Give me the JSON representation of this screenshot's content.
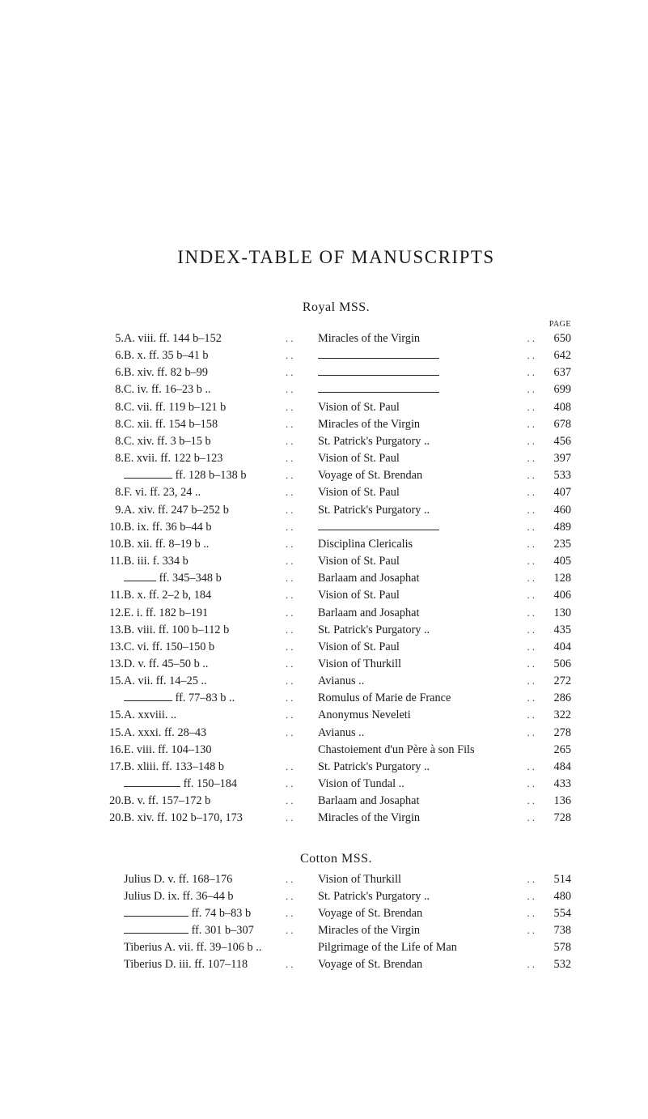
{
  "title": "INDEX-TABLE OF MANUSCRIPTS",
  "page_label": "PAGE",
  "sections": [
    {
      "heading": "Royal MSS.",
      "rows": [
        {
          "no": "5.",
          "ms": "A. viii. ff. 144 b–152",
          "subj": "Miracles of the Virgin",
          "pg": "650"
        },
        {
          "no": "6.",
          "ms": "B. x. ff. 35 b–41 b",
          "subj_rule": 150,
          "pg": "642"
        },
        {
          "no": "6.",
          "ms": "B. xiv. ff. 82 b–99",
          "subj_rule": 150,
          "pg": "637"
        },
        {
          "no": "8.",
          "ms": "C. iv. ff. 16–23 b ..",
          "subj_rule": 150,
          "pg": "699"
        },
        {
          "no": "8.",
          "ms": "C. vii. ff. 119 b–121 b",
          "subj": "Vision of St. Paul",
          "pg": "408"
        },
        {
          "no": "8.",
          "ms": "C. xii. ff. 154 b–158",
          "subj": "Miracles of the Virgin",
          "pg": "678"
        },
        {
          "no": "8.",
          "ms": "C. xiv. ff. 3 b–15 b",
          "subj": "St. Patrick's Purgatory ..",
          "pg": "456"
        },
        {
          "no": "8.",
          "ms": "E. xvii. ff. 122 b–123",
          "subj": "Vision of St. Paul",
          "pg": "397"
        },
        {
          "no": "",
          "ms_rule": 60,
          "ms_after": " ff. 128 b–138 b",
          "subj": "Voyage of St. Brendan",
          "pg": "533"
        },
        {
          "no": "8.",
          "ms": "F. vi. ff. 23, 24   ..",
          "subj": "Vision of St. Paul",
          "pg": "407"
        },
        {
          "no": "9.",
          "ms": "A. xiv. ff. 247 b–252 b",
          "subj": "St. Patrick's Purgatory ..",
          "pg": "460"
        },
        {
          "no": "10.",
          "ms": "B. ix. ff. 36 b–44 b",
          "subj_rule": 150,
          "pg": "489"
        },
        {
          "no": "10.",
          "ms": "B. xii. ff. 8–19 b ..",
          "subj": "Disciplina Clericalis",
          "pg": "235"
        },
        {
          "no": "11.",
          "ms": "B. iii. f. 334 b",
          "subj": "Vision of St. Paul",
          "pg": "405"
        },
        {
          "no": "",
          "ms_rule": 40,
          "ms_after": " ff. 345–348 b",
          "subj": "Barlaam and Josaphat",
          "pg": "128"
        },
        {
          "no": "11.",
          "ms": "B. x. ff. 2–2 b, 184",
          "subj": "Vision of St. Paul",
          "pg": "406"
        },
        {
          "no": "12.",
          "ms": "E. i. ff. 182 b–191",
          "subj": "Barlaam and Josaphat",
          "pg": "130"
        },
        {
          "no": "13.",
          "ms": "B. viii. ff. 100 b–112 b",
          "subj": "St. Patrick's Purgatory ..",
          "pg": "435"
        },
        {
          "no": "13.",
          "ms": "C. vi. ff. 150–150 b",
          "subj": "Vision of St. Paul",
          "pg": "404"
        },
        {
          "no": "13.",
          "ms": "D. v. ff. 45–50 b ..",
          "subj": "Vision of Thurkill",
          "pg": "506"
        },
        {
          "no": "15.",
          "ms": "A. vii. ff. 14–25 ..",
          "subj": "Avianus ..",
          "pg": "272"
        },
        {
          "no": "",
          "ms_rule": 60,
          "ms_after": " ff. 77–83 b ..",
          "subj": "Romulus of Marie de France",
          "pg": "286"
        },
        {
          "no": "15.",
          "ms": "A. xxviii. ..",
          "subj": "Anonymus Neveleti",
          "pg": "322"
        },
        {
          "no": "15.",
          "ms": "A. xxxi. ff. 28–43",
          "subj": "Avianus ..",
          "pg": "278"
        },
        {
          "no": "16.",
          "ms": "E. viii. ff. 104–130",
          "subj": "Chastoiement d'un Père à son Fils",
          "pg": "265",
          "tight": true
        },
        {
          "no": "17.",
          "ms": "B. xliii. ff. 133–148 b",
          "subj": "St. Patrick's Purgatory ..",
          "pg": "484"
        },
        {
          "no": "",
          "ms_rule": 70,
          "ms_after": " ff. 150–184",
          "subj": "Vision of Tundal ..",
          "pg": "433"
        },
        {
          "no": "20.",
          "ms": "B. v. ff. 157–172 b",
          "subj": "Barlaam and Josaphat",
          "pg": "136"
        },
        {
          "no": "20.",
          "ms": "B. xiv. ff. 102 b–170, 173",
          "subj": "Miracles of the Virgin",
          "pg": "728"
        }
      ]
    },
    {
      "heading": "Cotton MSS.",
      "rows": [
        {
          "no": "",
          "ms": "Julius D. v. ff. 168–176",
          "subj": "Vision of Thurkill",
          "pg": "514"
        },
        {
          "no": "",
          "ms": "Julius D. ix. ff. 36–44 b",
          "subj": "St. Patrick's Purgatory ..",
          "pg": "480"
        },
        {
          "no": "",
          "ms_rule": 80,
          "ms_after": " ff. 74 b–83 b",
          "subj": "Voyage of St. Brendan",
          "pg": "554"
        },
        {
          "no": "",
          "ms_rule": 80,
          "ms_after": " ff. 301 b–307",
          "subj": "Miracles of the Virgin",
          "pg": "738"
        },
        {
          "no": "",
          "ms": "Tiberius A. vii. ff. 39–106 b ..",
          "subj": "Pilgrimage of the Life of Man",
          "pg": "578",
          "tight": true
        },
        {
          "no": "",
          "ms": "Tiberius D. iii. ff. 107–118",
          "subj": "Voyage of St. Brendan",
          "pg": "532"
        }
      ]
    }
  ]
}
